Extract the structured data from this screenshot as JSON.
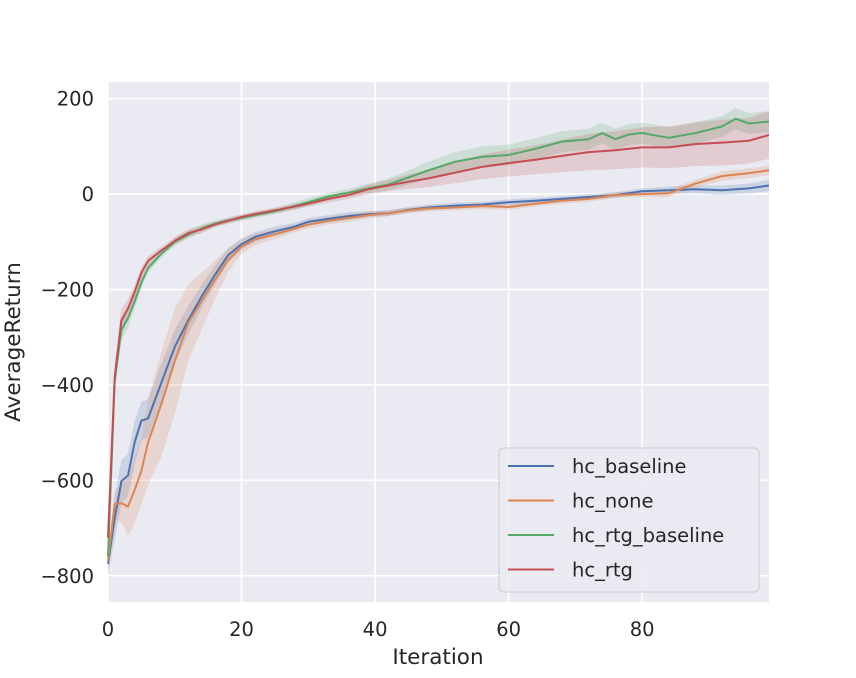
{
  "chart_data": {
    "type": "line",
    "title": "",
    "xlabel": "Iteration",
    "ylabel": "AverageReturn",
    "xlim": [
      0,
      99
    ],
    "ylim": [
      -855,
      235
    ],
    "xticks": [
      0,
      20,
      40,
      60,
      80
    ],
    "yticks": [
      -800,
      -600,
      -400,
      -200,
      0,
      200
    ],
    "xtick_labels": [
      "0",
      "20",
      "40",
      "60",
      "80"
    ],
    "ytick_labels": [
      "−800",
      "−600",
      "−400",
      "−200",
      "0",
      "200"
    ],
    "grid": true,
    "style": "seaborn darkgrid",
    "legend_position": "lower-right",
    "shaded_band": "spread across runs",
    "series": [
      {
        "name": "hc_baseline",
        "color": "#4c72b0",
        "x": [
          0,
          1,
          2,
          3,
          4,
          5,
          6,
          8,
          10,
          12,
          14,
          16,
          18,
          20,
          22,
          25,
          28,
          30,
          33,
          36,
          39,
          42,
          45,
          48,
          52,
          56,
          60,
          64,
          68,
          72,
          76,
          80,
          84,
          88,
          92,
          96,
          99
        ],
        "y": [
          -775,
          -680,
          -602,
          -590,
          -520,
          -475,
          -470,
          -395,
          -320,
          -265,
          -215,
          -170,
          -128,
          -105,
          -90,
          -78,
          -68,
          -58,
          -52,
          -46,
          -42,
          -40,
          -33,
          -28,
          -24,
          -22,
          -17,
          -14,
          -10,
          -6,
          -2,
          6,
          8,
          10,
          8,
          12,
          18
        ],
        "band": [
          25,
          45,
          45,
          45,
          45,
          40,
          40,
          40,
          35,
          30,
          25,
          20,
          15,
          12,
          10,
          10,
          8,
          8,
          8,
          8,
          6,
          6,
          6,
          6,
          6,
          6,
          6,
          6,
          6,
          6,
          6,
          6,
          8,
          8,
          10,
          10,
          12
        ]
      },
      {
        "name": "hc_none",
        "color": "#dd8452",
        "x": [
          0,
          1,
          2,
          3,
          4,
          5,
          6,
          8,
          10,
          12,
          14,
          16,
          18,
          20,
          22,
          25,
          28,
          30,
          33,
          36,
          39,
          42,
          45,
          48,
          52,
          56,
          60,
          64,
          68,
          72,
          76,
          80,
          84,
          88,
          92,
          96,
          99
        ],
        "y": [
          -770,
          -650,
          -648,
          -655,
          -620,
          -580,
          -520,
          -440,
          -350,
          -270,
          -225,
          -180,
          -138,
          -110,
          -95,
          -84,
          -72,
          -64,
          -56,
          -50,
          -44,
          -40,
          -34,
          -30,
          -28,
          -25,
          -27,
          -20,
          -14,
          -10,
          -2,
          0,
          2,
          22,
          38,
          44,
          50
        ],
        "band": [
          20,
          30,
          40,
          60,
          70,
          70,
          90,
          110,
          110,
          80,
          60,
          40,
          25,
          15,
          12,
          10,
          8,
          8,
          8,
          8,
          8,
          6,
          6,
          6,
          6,
          6,
          6,
          6,
          6,
          6,
          6,
          6,
          8,
          8,
          10,
          10,
          10
        ]
      },
      {
        "name": "hc_rtg_baseline",
        "color": "#55a868",
        "x": [
          0,
          1,
          2,
          3,
          4,
          5,
          6,
          8,
          10,
          12,
          14,
          16,
          18,
          20,
          22,
          25,
          28,
          30,
          33,
          36,
          39,
          42,
          45,
          48,
          52,
          56,
          60,
          64,
          68,
          72,
          74,
          76,
          78,
          80,
          84,
          88,
          92,
          94,
          96,
          99
        ],
        "y": [
          -760,
          -390,
          -285,
          -260,
          -225,
          -185,
          -155,
          -125,
          -100,
          -85,
          -72,
          -62,
          -55,
          -50,
          -44,
          -36,
          -25,
          -17,
          -5,
          3,
          12,
          20,
          35,
          50,
          68,
          78,
          82,
          95,
          110,
          115,
          128,
          115,
          125,
          128,
          118,
          128,
          142,
          158,
          148,
          152
        ],
        "band": [
          20,
          20,
          20,
          20,
          15,
          12,
          10,
          8,
          8,
          8,
          8,
          6,
          6,
          6,
          6,
          6,
          8,
          8,
          8,
          8,
          10,
          12,
          15,
          18,
          20,
          22,
          22,
          22,
          22,
          22,
          22,
          22,
          22,
          22,
          22,
          22,
          22,
          22,
          22,
          22
        ]
      },
      {
        "name": "hc_rtg",
        "color": "#c44e52",
        "x": [
          0,
          1,
          2,
          3,
          4,
          5,
          6,
          8,
          10,
          12,
          14,
          16,
          18,
          20,
          22,
          25,
          28,
          30,
          33,
          36,
          39,
          42,
          45,
          48,
          52,
          56,
          60,
          64,
          68,
          72,
          76,
          80,
          84,
          88,
          92,
          96,
          99
        ],
        "y": [
          -720,
          -385,
          -265,
          -240,
          -205,
          -165,
          -140,
          -118,
          -98,
          -82,
          -74,
          -64,
          -56,
          -48,
          -42,
          -34,
          -26,
          -20,
          -10,
          -2,
          10,
          18,
          26,
          33,
          45,
          57,
          65,
          72,
          80,
          88,
          92,
          98,
          98,
          105,
          108,
          112,
          124
        ],
        "band": [
          30,
          30,
          25,
          20,
          15,
          12,
          10,
          8,
          8,
          8,
          8,
          6,
          6,
          6,
          6,
          6,
          6,
          6,
          8,
          8,
          10,
          12,
          15,
          18,
          22,
          26,
          28,
          30,
          34,
          38,
          40,
          42,
          44,
          46,
          48,
          48,
          50
        ]
      }
    ]
  }
}
